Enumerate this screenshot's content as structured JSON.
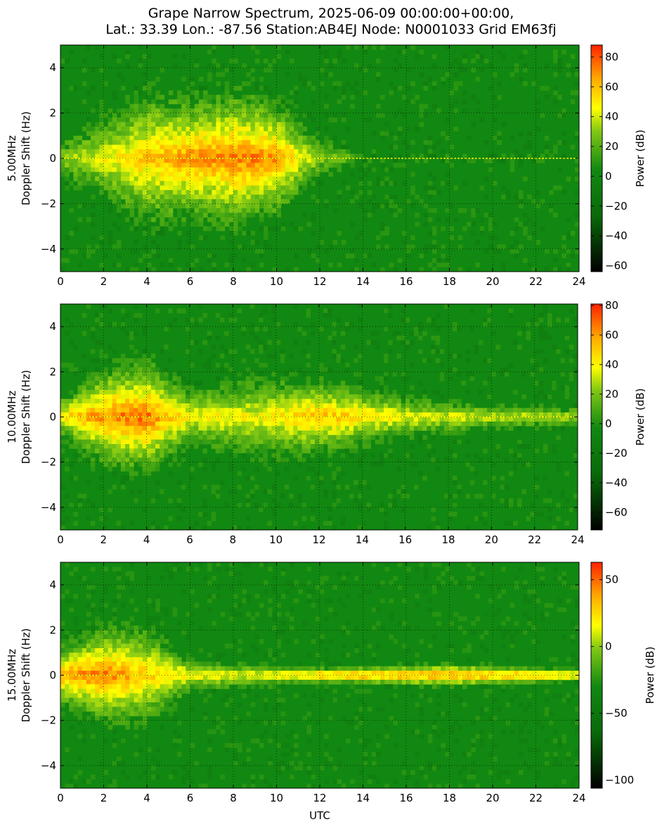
{
  "title_line1": "Grape Narrow Spectrum, 2025-06-09 00:00:00+00:00,",
  "title_line2": "Lat.: 33.39 Lon.: -87.56 Station:AB4EJ Node: N0001033 Grid EM63fj",
  "colors": {
    "background_green": "#118811",
    "dark_green": "#0a6a0a",
    "yellow": "#ffff00",
    "orange": "#ffaa00",
    "red": "#ff2200",
    "black": "#000000"
  },
  "chart_data": [
    {
      "type": "heatmap",
      "ylabel_line1": "5.00MHz",
      "ylabel_line2": "Doppler Shift (Hz)",
      "xlabel": "",
      "xlim": [
        0,
        24
      ],
      "ylim": [
        -5,
        5
      ],
      "x_ticks": [
        0,
        2,
        4,
        6,
        8,
        10,
        12,
        14,
        16,
        18,
        20,
        22,
        24
      ],
      "y_ticks": [
        -4,
        -2,
        0,
        2,
        4
      ],
      "y_tick_labels": [
        "−4",
        "−2",
        "0",
        "2",
        "4"
      ],
      "grid": true,
      "colorbar": {
        "label": "Power (dB)",
        "range": [
          -64,
          88
        ],
        "ticks": [
          -60,
          -40,
          -20,
          0,
          20,
          40,
          60,
          80
        ],
        "tick_labels": [
          "−60",
          "−40",
          "−20",
          "0",
          "20",
          "40",
          "60",
          "80"
        ]
      },
      "carrier_hz": 0,
      "spread_profile": [
        {
          "utc": 0,
          "spread_hz": 1.0,
          "peak_db": 30
        },
        {
          "utc": 2,
          "spread_hz": 2.0,
          "peak_db": 45
        },
        {
          "utc": 4,
          "spread_hz": 3.5,
          "peak_db": 60
        },
        {
          "utc": 6,
          "spread_hz": 3.0,
          "peak_db": 70
        },
        {
          "utc": 8,
          "spread_hz": 3.5,
          "peak_db": 75
        },
        {
          "utc": 10,
          "spread_hz": 3.0,
          "peak_db": 70
        },
        {
          "utc": 12,
          "spread_hz": 1.0,
          "peak_db": 30
        },
        {
          "utc": 14,
          "spread_hz": 0.1,
          "peak_db": 20
        },
        {
          "utc": 24,
          "spread_hz": 0.1,
          "peak_db": 15
        }
      ]
    },
    {
      "type": "heatmap",
      "ylabel_line1": "10.00MHz",
      "ylabel_line2": "Doppler Shift (Hz)",
      "xlabel": "",
      "xlim": [
        0,
        24
      ],
      "ylim": [
        -5,
        5
      ],
      "x_ticks": [
        0,
        2,
        4,
        6,
        8,
        10,
        12,
        14,
        16,
        18,
        20,
        22,
        24
      ],
      "y_ticks": [
        -4,
        -2,
        0,
        2,
        4
      ],
      "y_tick_labels": [
        "−4",
        "−2",
        "0",
        "2",
        "4"
      ],
      "grid": true,
      "colorbar": {
        "label": "Power (dB)",
        "range": [
          -72,
          81
        ],
        "ticks": [
          -60,
          -40,
          -20,
          0,
          20,
          40,
          60,
          80
        ],
        "tick_labels": [
          "−60",
          "−40",
          "−20",
          "0",
          "20",
          "40",
          "60",
          "80"
        ]
      },
      "carrier_hz": 0,
      "spread_profile": [
        {
          "utc": 0,
          "spread_hz": 1.0,
          "peak_db": 45
        },
        {
          "utc": 2,
          "spread_hz": 2.5,
          "peak_db": 65
        },
        {
          "utc": 4,
          "spread_hz": 3.0,
          "peak_db": 70
        },
        {
          "utc": 6,
          "spread_hz": 1.5,
          "peak_db": 40
        },
        {
          "utc": 9,
          "spread_hz": 2.0,
          "peak_db": 40
        },
        {
          "utc": 12,
          "spread_hz": 2.0,
          "peak_db": 55
        },
        {
          "utc": 16,
          "spread_hz": 1.0,
          "peak_db": 40
        },
        {
          "utc": 20,
          "spread_hz": 0.6,
          "peak_db": 35
        },
        {
          "utc": 24,
          "spread_hz": 0.5,
          "peak_db": 30
        }
      ]
    },
    {
      "type": "heatmap",
      "ylabel_line1": "15.00MHz",
      "ylabel_line2": "Doppler Shift (Hz)",
      "xlabel": "UTC",
      "xlim": [
        0,
        24
      ],
      "ylim": [
        -5,
        5
      ],
      "x_ticks": [
        0,
        2,
        4,
        6,
        8,
        10,
        12,
        14,
        16,
        18,
        20,
        22,
        24
      ],
      "y_ticks": [
        -4,
        -2,
        0,
        2,
        4
      ],
      "y_tick_labels": [
        "−4",
        "−2",
        "0",
        "2",
        "4"
      ],
      "grid": true,
      "colorbar": {
        "label": "Power (dB)",
        "range": [
          -106,
          63
        ],
        "ticks": [
          -100,
          -50,
          0,
          50
        ],
        "tick_labels": [
          "−100",
          "−50",
          "0",
          "50"
        ]
      },
      "carrier_hz": 0,
      "spread_profile": [
        {
          "utc": 0,
          "spread_hz": 1.5,
          "peak_db": 40
        },
        {
          "utc": 2,
          "spread_hz": 2.5,
          "peak_db": 50
        },
        {
          "utc": 4,
          "spread_hz": 2.5,
          "peak_db": 30
        },
        {
          "utc": 6,
          "spread_hz": 0.8,
          "peak_db": 20
        },
        {
          "utc": 9,
          "spread_hz": 0.6,
          "peak_db": 15
        },
        {
          "utc": 12,
          "spread_hz": 0.4,
          "peak_db": 40
        },
        {
          "utc": 18,
          "spread_hz": 0.6,
          "peak_db": 45
        },
        {
          "utc": 24,
          "spread_hz": 0.3,
          "peak_db": 40
        }
      ]
    }
  ]
}
